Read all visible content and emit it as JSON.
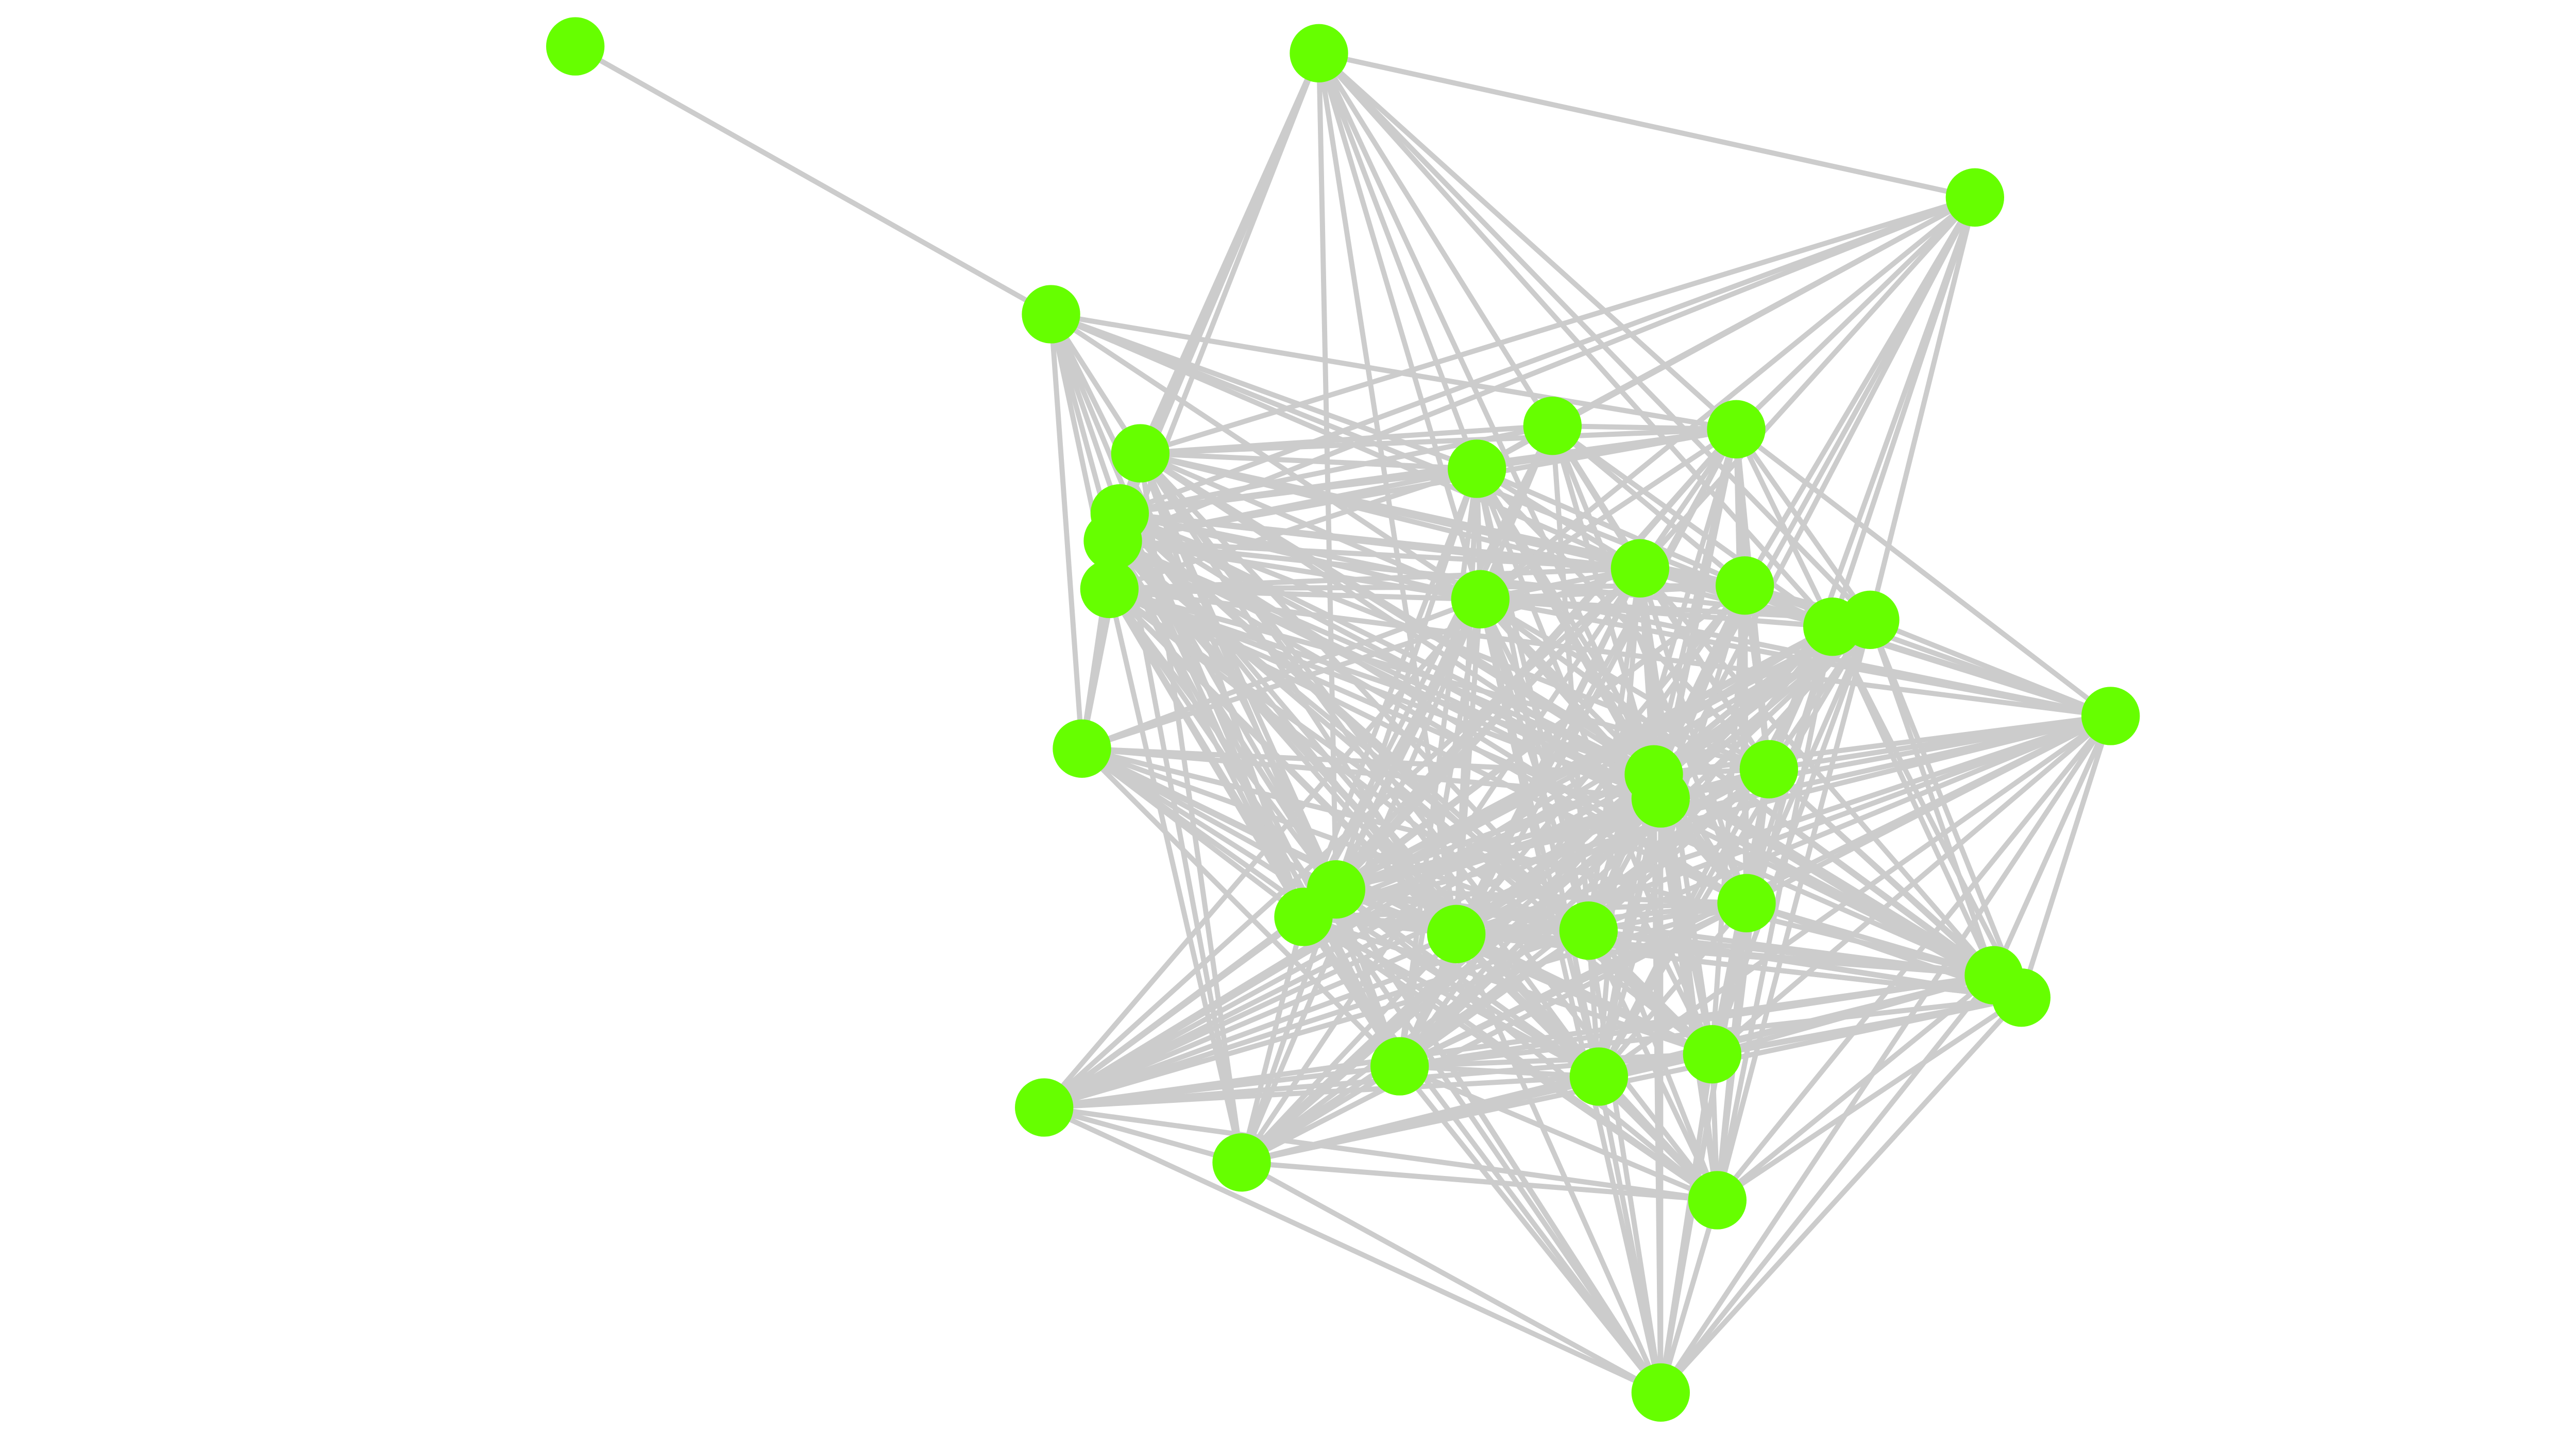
{
  "diagram": {
    "type": "network-graph",
    "colors": {
      "node": "#66ff00",
      "edge": "#cccccc",
      "background": "#ffffff"
    },
    "nodes": [
      "n0",
      "n1",
      "n2",
      "n3",
      "n4",
      "n5",
      "n6",
      "n7",
      "n8",
      "n9",
      "n10",
      "n11",
      "n12",
      "n13",
      "n14",
      "n15",
      "n16",
      "n17",
      "n18",
      "n19",
      "n20",
      "n21",
      "n22",
      "n23",
      "n24",
      "n25",
      "n26",
      "n27",
      "n28",
      "n29",
      "n30",
      "n31",
      "n32",
      "n33",
      "n34"
    ],
    "adjacency": {
      "n0": [
        1
      ],
      "n1": [
        4,
        5,
        6,
        7,
        8,
        9,
        11,
        12,
        14,
        15,
        21,
        22
      ],
      "n2": [
        3,
        4,
        5,
        6,
        7,
        9,
        11,
        12,
        14,
        15,
        16,
        18,
        21,
        23
      ],
      "n3": [
        4,
        5,
        6,
        9,
        10,
        11,
        12,
        13,
        14,
        15,
        16,
        18,
        19,
        20
      ],
      "n4": [
        5,
        6,
        7,
        8,
        9,
        10,
        11,
        12,
        13,
        14,
        15,
        16,
        18,
        19,
        21,
        22,
        23,
        24,
        26,
        28,
        29,
        32,
        33
      ],
      "n5": [
        6,
        7,
        9,
        10,
        11,
        12,
        13,
        14,
        17,
        18,
        19,
        20,
        21,
        22,
        23,
        24,
        25,
        26,
        28,
        29,
        30,
        32
      ],
      "n6": [
        7,
        8,
        9,
        11,
        12,
        14,
        16,
        18,
        19,
        21,
        22,
        23,
        24,
        25,
        26,
        28,
        29,
        30,
        33,
        34
      ],
      "n7": [
        8,
        9,
        12,
        13,
        14,
        17,
        18,
        19,
        20,
        21,
        22,
        23,
        24,
        25,
        26,
        28,
        29,
        30,
        32,
        33,
        34
      ],
      "n8": [
        12,
        14,
        18,
        19,
        21,
        22,
        23,
        24,
        26,
        28,
        29,
        30,
        33
      ],
      "n9": [
        10,
        11,
        12,
        13,
        14,
        18,
        19,
        20,
        21,
        22,
        23,
        24,
        25,
        28,
        29,
        30
      ],
      "n10": [
        11,
        12,
        13,
        14,
        15,
        18,
        19,
        20,
        21,
        22,
        24,
        25
      ],
      "n11": [
        12,
        13,
        14,
        15,
        16,
        17,
        18,
        19,
        20,
        21,
        22,
        23,
        24,
        25,
        28,
        29
      ],
      "n12": [
        13,
        14,
        15,
        16,
        17,
        18,
        19,
        20,
        21,
        22,
        23,
        24,
        25,
        26,
        28,
        29,
        30,
        31,
        32,
        33
      ],
      "n13": [
        14,
        15,
        16,
        17,
        18,
        19,
        20,
        21,
        22,
        23,
        24,
        25,
        28,
        29,
        30,
        31
      ],
      "n14": [
        15,
        16,
        17,
        18,
        19,
        20,
        21,
        22,
        23,
        24,
        25,
        26,
        27,
        28,
        29,
        30,
        31,
        32,
        33,
        34
      ],
      "n15": [
        16,
        17,
        18,
        19,
        20,
        21,
        22,
        23,
        24,
        25,
        26,
        27,
        28,
        29,
        30,
        31,
        32,
        33
      ],
      "n16": [
        17,
        18,
        19,
        20,
        21,
        22,
        23,
        24,
        25,
        26,
        27,
        28,
        29,
        30,
        31,
        32,
        33
      ],
      "n17": [
        18,
        19,
        20,
        21,
        22,
        23,
        24,
        25,
        26,
        27,
        28,
        29,
        30,
        31,
        32,
        33,
        34
      ],
      "n18": [
        19,
        20,
        21,
        22,
        23,
        24,
        25,
        26,
        27,
        28,
        29,
        30,
        31,
        32,
        33,
        34
      ],
      "n19": [
        20,
        21,
        22,
        23,
        24,
        25,
        26,
        27,
        28,
        29,
        30,
        31,
        32,
        33,
        34
      ],
      "n20": [
        21,
        22,
        23,
        24,
        25,
        26,
        27,
        28,
        29,
        30,
        31,
        32,
        33,
        34
      ],
      "n21": [
        22,
        23,
        24,
        25,
        26,
        27,
        28,
        29,
        30,
        31,
        32,
        33,
        34
      ],
      "n22": [
        23,
        24,
        25,
        26,
        27,
        28,
        29,
        30,
        31,
        32,
        33,
        34
      ],
      "n23": [
        24,
        25,
        26,
        27,
        28,
        29,
        30,
        31,
        32,
        33,
        34
      ],
      "n24": [
        25,
        26,
        27,
        28,
        29,
        30,
        31,
        32,
        33,
        34
      ],
      "n25": [
        26,
        27,
        28,
        29,
        30,
        31,
        32,
        33,
        34
      ],
      "n26": [
        27,
        28,
        29,
        30,
        31,
        32,
        33,
        34
      ],
      "n27": [
        28,
        29,
        30,
        32,
        33,
        34
      ],
      "n28": [
        29,
        30,
        31,
        32,
        33,
        34
      ],
      "n29": [
        30,
        31,
        32,
        33,
        34
      ],
      "n30": [
        31,
        32,
        33,
        34
      ],
      "n31": [
        32,
        33,
        34
      ],
      "n32": [
        33,
        34
      ],
      "n33": [
        34
      ]
    }
  }
}
